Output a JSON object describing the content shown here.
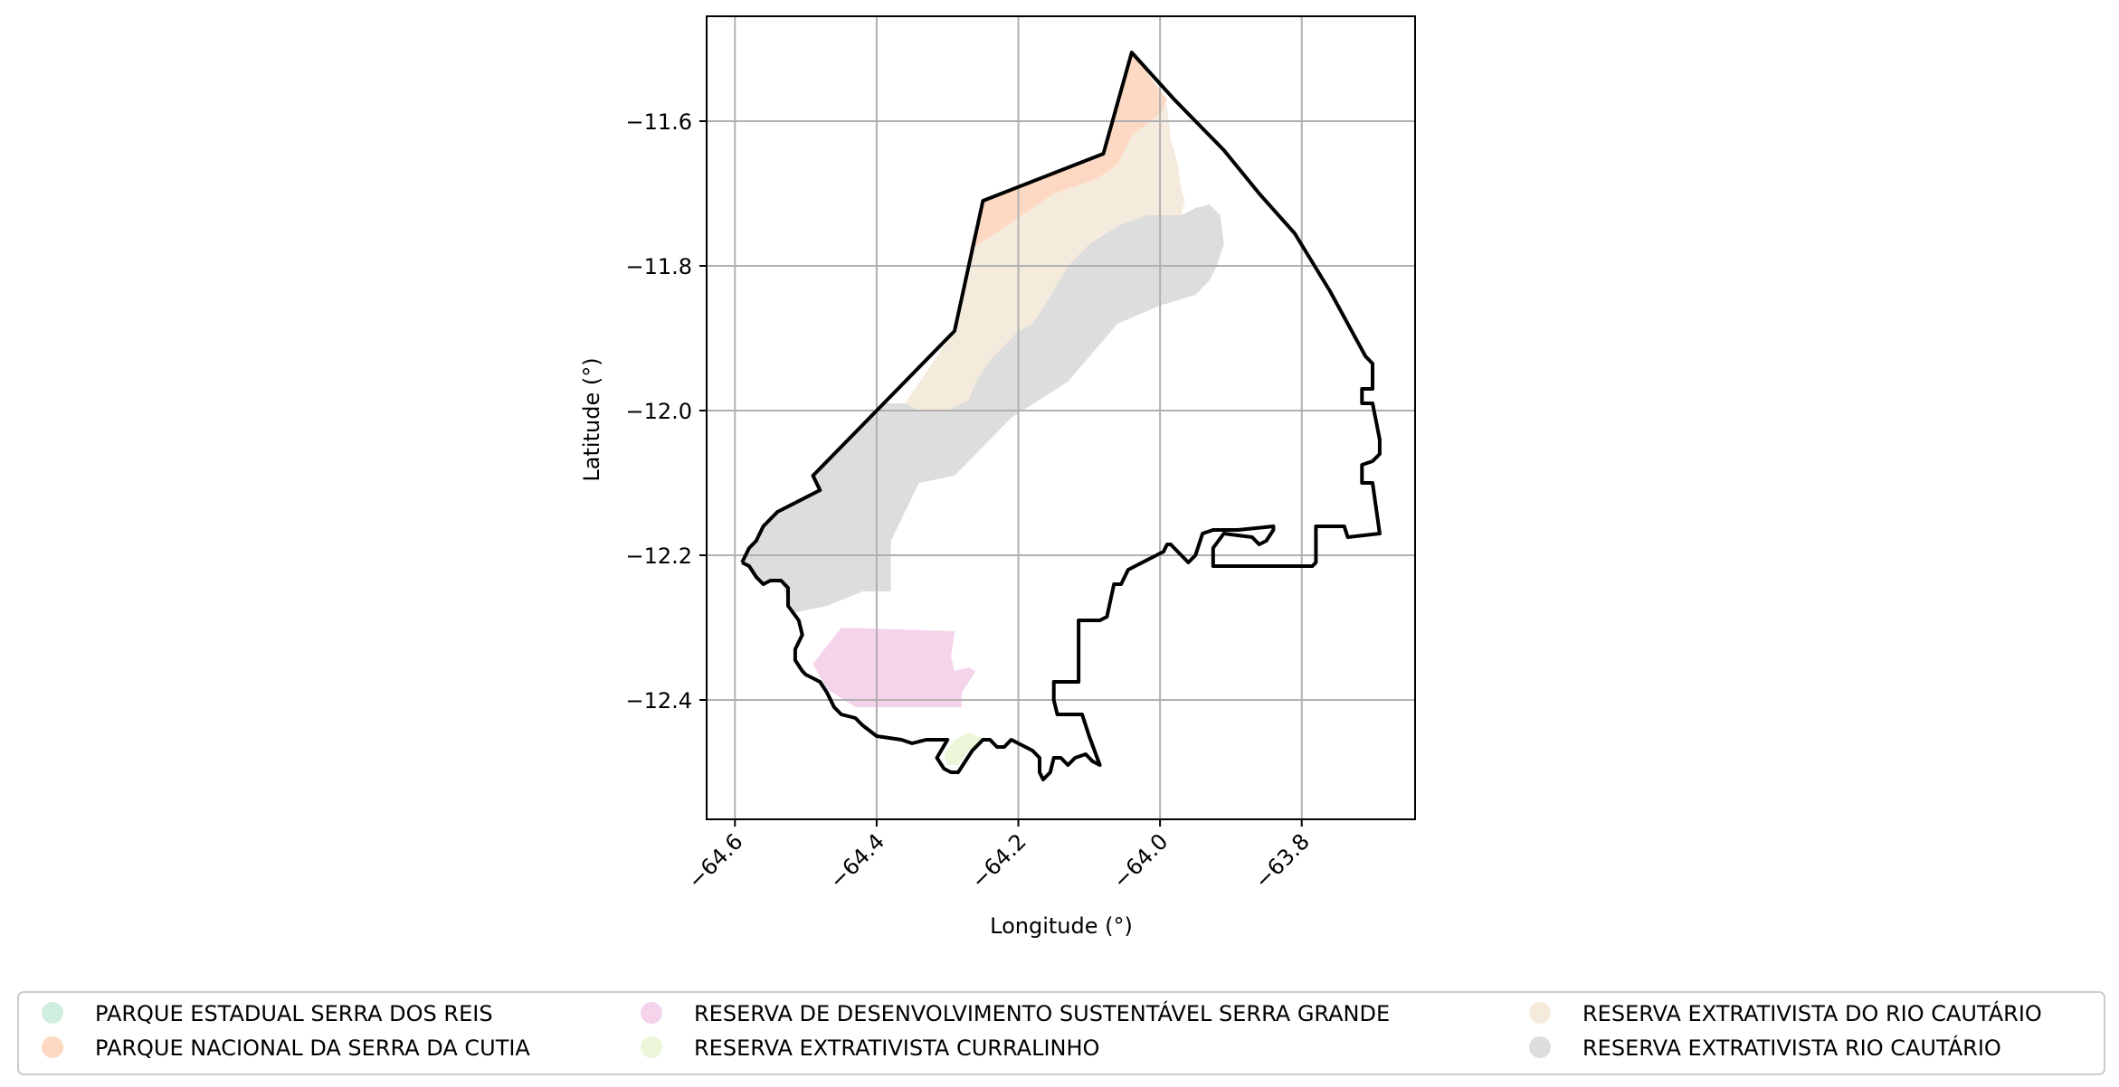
{
  "chart_data": {
    "type": "map",
    "xlabel": "Longitude (°)",
    "ylabel": "Latitude (°)",
    "xlim": [
      -64.64,
      -63.64
    ],
    "ylim": [
      -12.565,
      -11.455
    ],
    "xticks": [
      -64.6,
      -64.4,
      -64.2,
      -64.0,
      -63.8
    ],
    "xtick_labels": [
      "−64.6",
      "−64.4",
      "−64.2",
      "−64.0",
      "−63.8"
    ],
    "yticks": [
      -11.6,
      -11.8,
      -12.0,
      -12.2,
      -12.4
    ],
    "ytick_labels": [
      "−11.6",
      "−11.8",
      "−12.0",
      "−12.2",
      "−12.4"
    ],
    "grid": true,
    "legend_position": "below",
    "legend": [
      {
        "label": "PARQUE ESTADUAL SERRA DOS REIS",
        "color": "#cfeede"
      },
      {
        "label": "PARQUE NACIONAL DA SERRA DA CUTIA",
        "color": "#fdd9c4"
      },
      {
        "label": "RESERVA DE DESENVOLVIMENTO SUSTENTÁVEL SERRA GRANDE",
        "color": "#f5d3ea"
      },
      {
        "label": "RESERVA EXTRATIVISTA CURRALINHO",
        "color": "#ebf6d8"
      },
      {
        "label": "RESERVA EXTRATIVISTA DO RIO CAUTÁRIO",
        "color": "#f5ebdc"
      },
      {
        "label": "RESERVA EXTRATIVISTA RIO CAUTÁRIO",
        "color": "#dddddd"
      }
    ],
    "boundary_color": "#000000",
    "boundary": [
      [
        -64.59,
        -12.21
      ],
      [
        -64.58,
        -12.19
      ],
      [
        -64.57,
        -12.18
      ],
      [
        -64.56,
        -12.16
      ],
      [
        -64.54,
        -12.14
      ],
      [
        -64.48,
        -12.11
      ],
      [
        -64.49,
        -12.09
      ],
      [
        -64.39,
        -11.99
      ],
      [
        -64.29,
        -11.89
      ],
      [
        -64.25,
        -11.71
      ],
      [
        -64.08,
        -11.645
      ],
      [
        -64.04,
        -11.505
      ],
      [
        -63.98,
        -11.57
      ],
      [
        -63.91,
        -11.64
      ],
      [
        -63.86,
        -11.7
      ],
      [
        -63.81,
        -11.755
      ],
      [
        -63.76,
        -11.835
      ],
      [
        -63.71,
        -11.925
      ],
      [
        -63.7,
        -11.935
      ],
      [
        -63.7,
        -11.97
      ],
      [
        -63.715,
        -11.97
      ],
      [
        -63.715,
        -11.99
      ],
      [
        -63.7,
        -11.99
      ],
      [
        -63.69,
        -12.04
      ],
      [
        -63.69,
        -12.06
      ],
      [
        -63.7,
        -12.07
      ],
      [
        -63.715,
        -12.075
      ],
      [
        -63.715,
        -12.1
      ],
      [
        -63.7,
        -12.1
      ],
      [
        -63.69,
        -12.17
      ],
      [
        -63.735,
        -12.175
      ],
      [
        -63.74,
        -12.16
      ],
      [
        -63.78,
        -12.16
      ],
      [
        -63.78,
        -12.21
      ],
      [
        -63.785,
        -12.215
      ],
      [
        -63.925,
        -12.215
      ],
      [
        -63.925,
        -12.19
      ],
      [
        -63.91,
        -12.17
      ],
      [
        -63.87,
        -12.175
      ],
      [
        -63.86,
        -12.185
      ],
      [
        -63.85,
        -12.18
      ],
      [
        -63.84,
        -12.165
      ],
      [
        -63.84,
        -12.16
      ],
      [
        -63.89,
        -12.165
      ],
      [
        -63.925,
        -12.165
      ],
      [
        -63.94,
        -12.17
      ],
      [
        -63.95,
        -12.2
      ],
      [
        -63.96,
        -12.21
      ],
      [
        -63.985,
        -12.185
      ],
      [
        -63.99,
        -12.185
      ],
      [
        -63.995,
        -12.195
      ],
      [
        -64.045,
        -12.22
      ],
      [
        -64.055,
        -12.24
      ],
      [
        -64.065,
        -12.24
      ],
      [
        -64.075,
        -12.285
      ],
      [
        -64.085,
        -12.29
      ],
      [
        -64.115,
        -12.29
      ],
      [
        -64.115,
        -12.375
      ],
      [
        -64.15,
        -12.375
      ],
      [
        -64.15,
        -12.4
      ],
      [
        -64.145,
        -12.42
      ],
      [
        -64.11,
        -12.42
      ],
      [
        -64.1,
        -12.45
      ],
      [
        -64.085,
        -12.49
      ],
      [
        -64.095,
        -12.485
      ],
      [
        -64.105,
        -12.475
      ],
      [
        -64.12,
        -12.48
      ],
      [
        -64.13,
        -12.49
      ],
      [
        -64.14,
        -12.48
      ],
      [
        -64.15,
        -12.48
      ],
      [
        -64.155,
        -12.5
      ],
      [
        -64.165,
        -12.51
      ],
      [
        -64.17,
        -12.5
      ],
      [
        -64.17,
        -12.48
      ],
      [
        -64.18,
        -12.47
      ],
      [
        -64.19,
        -12.465
      ],
      [
        -64.2,
        -12.46
      ],
      [
        -64.21,
        -12.455
      ],
      [
        -64.22,
        -12.465
      ],
      [
        -64.23,
        -12.465
      ],
      [
        -64.24,
        -12.455
      ],
      [
        -64.25,
        -12.455
      ],
      [
        -64.265,
        -12.47
      ],
      [
        -64.275,
        -12.485
      ],
      [
        -64.285,
        -12.5
      ],
      [
        -64.295,
        -12.5
      ],
      [
        -64.305,
        -12.495
      ],
      [
        -64.315,
        -12.48
      ],
      [
        -64.3,
        -12.455
      ],
      [
        -64.32,
        -12.455
      ],
      [
        -64.33,
        -12.455
      ],
      [
        -64.35,
        -12.46
      ],
      [
        -64.365,
        -12.455
      ],
      [
        -64.4,
        -12.45
      ],
      [
        -64.42,
        -12.435
      ],
      [
        -64.43,
        -12.425
      ],
      [
        -64.45,
        -12.42
      ],
      [
        -64.46,
        -12.41
      ],
      [
        -64.47,
        -12.39
      ],
      [
        -64.48,
        -12.375
      ],
      [
        -64.49,
        -12.37
      ],
      [
        -64.5,
        -12.365
      ],
      [
        -64.505,
        -12.36
      ],
      [
        -64.515,
        -12.345
      ],
      [
        -64.515,
        -12.33
      ],
      [
        -64.505,
        -12.31
      ],
      [
        -64.51,
        -12.29
      ],
      [
        -64.525,
        -12.27
      ],
      [
        -64.525,
        -12.245
      ],
      [
        -64.535,
        -12.235
      ],
      [
        -64.55,
        -12.235
      ],
      [
        -64.56,
        -12.24
      ],
      [
        -64.57,
        -12.23
      ],
      [
        -64.58,
        -12.215
      ],
      [
        -64.59,
        -12.21
      ]
    ],
    "areas": [
      {
        "name": "RESERVA EXTRATIVISTA RIO CAUTÁRIO",
        "color": "#dddddd",
        "points": [
          [
            -64.59,
            -12.21
          ],
          [
            -64.58,
            -12.19
          ],
          [
            -64.57,
            -12.18
          ],
          [
            -64.56,
            -12.16
          ],
          [
            -64.54,
            -12.14
          ],
          [
            -64.48,
            -12.11
          ],
          [
            -64.49,
            -12.09
          ],
          [
            -64.39,
            -11.99
          ],
          [
            -64.36,
            -11.99
          ],
          [
            -64.34,
            -12.0
          ],
          [
            -64.3,
            -12.0
          ],
          [
            -64.27,
            -11.985
          ],
          [
            -64.26,
            -11.96
          ],
          [
            -64.24,
            -11.93
          ],
          [
            -64.2,
            -11.89
          ],
          [
            -64.18,
            -11.88
          ],
          [
            -64.16,
            -11.85
          ],
          [
            -64.13,
            -11.8
          ],
          [
            -64.1,
            -11.77
          ],
          [
            -64.06,
            -11.745
          ],
          [
            -64.02,
            -11.73
          ],
          [
            -64.0,
            -11.73
          ],
          [
            -63.97,
            -11.73
          ],
          [
            -63.95,
            -11.72
          ],
          [
            -63.93,
            -11.715
          ],
          [
            -63.915,
            -11.73
          ],
          [
            -63.91,
            -11.77
          ],
          [
            -63.92,
            -11.8
          ],
          [
            -63.93,
            -11.82
          ],
          [
            -63.95,
            -11.84
          ],
          [
            -64.0,
            -11.855
          ],
          [
            -64.06,
            -11.88
          ],
          [
            -64.13,
            -11.96
          ],
          [
            -64.21,
            -12.01
          ],
          [
            -64.29,
            -12.09
          ],
          [
            -64.34,
            -12.1
          ],
          [
            -64.36,
            -12.14
          ],
          [
            -64.38,
            -12.18
          ],
          [
            -64.38,
            -12.25
          ],
          [
            -64.42,
            -12.25
          ],
          [
            -64.47,
            -12.27
          ],
          [
            -64.52,
            -12.28
          ],
          [
            -64.535,
            -12.235
          ],
          [
            -64.55,
            -12.235
          ],
          [
            -64.56,
            -12.24
          ],
          [
            -64.57,
            -12.23
          ],
          [
            -64.58,
            -12.215
          ]
        ]
      },
      {
        "name": "RESERVA EXTRATIVISTA DO RIO CAUTÁRIO",
        "color": "#f5ebdc",
        "points": [
          [
            -64.36,
            -11.99
          ],
          [
            -64.29,
            -11.89
          ],
          [
            -64.25,
            -11.71
          ],
          [
            -64.08,
            -11.645
          ],
          [
            -64.04,
            -11.56
          ],
          [
            -64.02,
            -11.54
          ],
          [
            -63.99,
            -11.58
          ],
          [
            -63.985,
            -11.625
          ],
          [
            -63.975,
            -11.66
          ],
          [
            -63.97,
            -11.695
          ],
          [
            -63.965,
            -11.71
          ],
          [
            -63.97,
            -11.73
          ],
          [
            -64.02,
            -11.73
          ],
          [
            -64.06,
            -11.745
          ],
          [
            -64.1,
            -11.77
          ],
          [
            -64.13,
            -11.8
          ],
          [
            -64.16,
            -11.85
          ],
          [
            -64.18,
            -11.88
          ],
          [
            -64.2,
            -11.89
          ],
          [
            -64.24,
            -11.93
          ],
          [
            -64.26,
            -11.96
          ],
          [
            -64.27,
            -11.985
          ],
          [
            -64.3,
            -12.0
          ],
          [
            -64.34,
            -12.0
          ]
        ]
      },
      {
        "name": "PARQUE NACIONAL DA SERRA DA CUTIA",
        "color": "#fdd9c4",
        "points": [
          [
            -64.25,
            -11.71
          ],
          [
            -64.08,
            -11.645
          ],
          [
            -64.04,
            -11.505
          ],
          [
            -63.99,
            -11.57
          ],
          [
            -64.0,
            -11.59
          ],
          [
            -64.04,
            -11.62
          ],
          [
            -64.06,
            -11.66
          ],
          [
            -64.09,
            -11.68
          ],
          [
            -64.15,
            -11.7
          ],
          [
            -64.21,
            -11.74
          ],
          [
            -64.24,
            -11.76
          ],
          [
            -64.27,
            -11.78
          ]
        ]
      },
      {
        "name": "RESERVA DE DESENVOLVIMENTO SUSTENTÁVEL SERRA GRANDE",
        "color": "#f5d3ea",
        "points": [
          [
            -64.49,
            -12.35
          ],
          [
            -64.45,
            -12.3
          ],
          [
            -64.29,
            -12.305
          ],
          [
            -64.295,
            -12.34
          ],
          [
            -64.29,
            -12.36
          ],
          [
            -64.27,
            -12.355
          ],
          [
            -64.26,
            -12.36
          ],
          [
            -64.27,
            -12.375
          ],
          [
            -64.28,
            -12.39
          ],
          [
            -64.28,
            -12.41
          ],
          [
            -64.43,
            -12.41
          ],
          [
            -64.47,
            -12.385
          ]
        ]
      },
      {
        "name": "RESERVA EXTRATIVISTA CURRALINHO",
        "color": "#ebf6d8",
        "points": [
          [
            -64.305,
            -12.475
          ],
          [
            -64.29,
            -12.455
          ],
          [
            -64.27,
            -12.445
          ],
          [
            -64.245,
            -12.455
          ],
          [
            -64.27,
            -12.47
          ],
          [
            -64.285,
            -12.49
          ],
          [
            -64.3,
            -12.49
          ]
        ]
      }
    ]
  }
}
